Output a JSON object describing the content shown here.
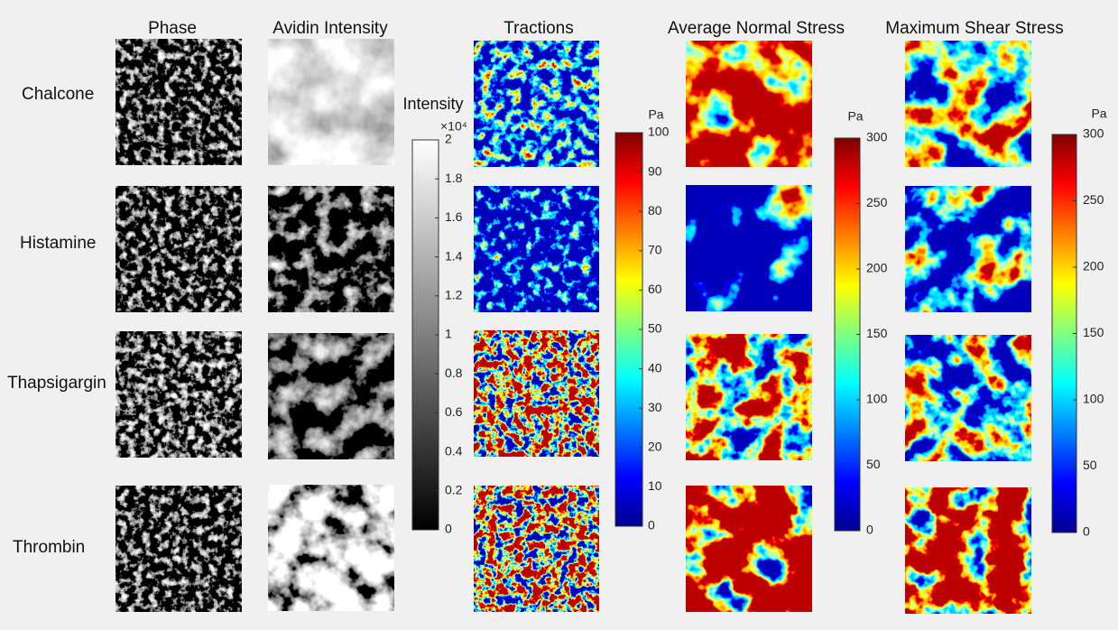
{
  "columns": [
    "Phase",
    "Avidin Intensity",
    "Tractions",
    "Average Normal Stress",
    "Maximum Shear Stress"
  ],
  "rows": [
    "Chalcone",
    "Histamine",
    "Thapsigargin",
    "Thrombin"
  ],
  "colorbars": [
    {
      "label": "Intensity",
      "multiplier": "×10⁴",
      "lim": [
        0,
        2
      ],
      "ticks": [
        0,
        0.2,
        0.4,
        0.6,
        0.8,
        1,
        1.2,
        1.4,
        1.6,
        1.8,
        2
      ]
    },
    {
      "label": "Pa",
      "lim": [
        0,
        100
      ],
      "ticks": [
        0,
        10,
        20,
        30,
        40,
        50,
        60,
        70,
        80,
        90,
        100
      ]
    },
    {
      "label": "Pa",
      "lim": [
        0,
        300
      ],
      "ticks": [
        0,
        50,
        100,
        150,
        200,
        250,
        300
      ]
    },
    {
      "label": "Pa",
      "lim": [
        0,
        300
      ],
      "ticks": [
        0,
        50,
        100,
        150,
        200,
        250,
        300
      ]
    }
  ]
}
